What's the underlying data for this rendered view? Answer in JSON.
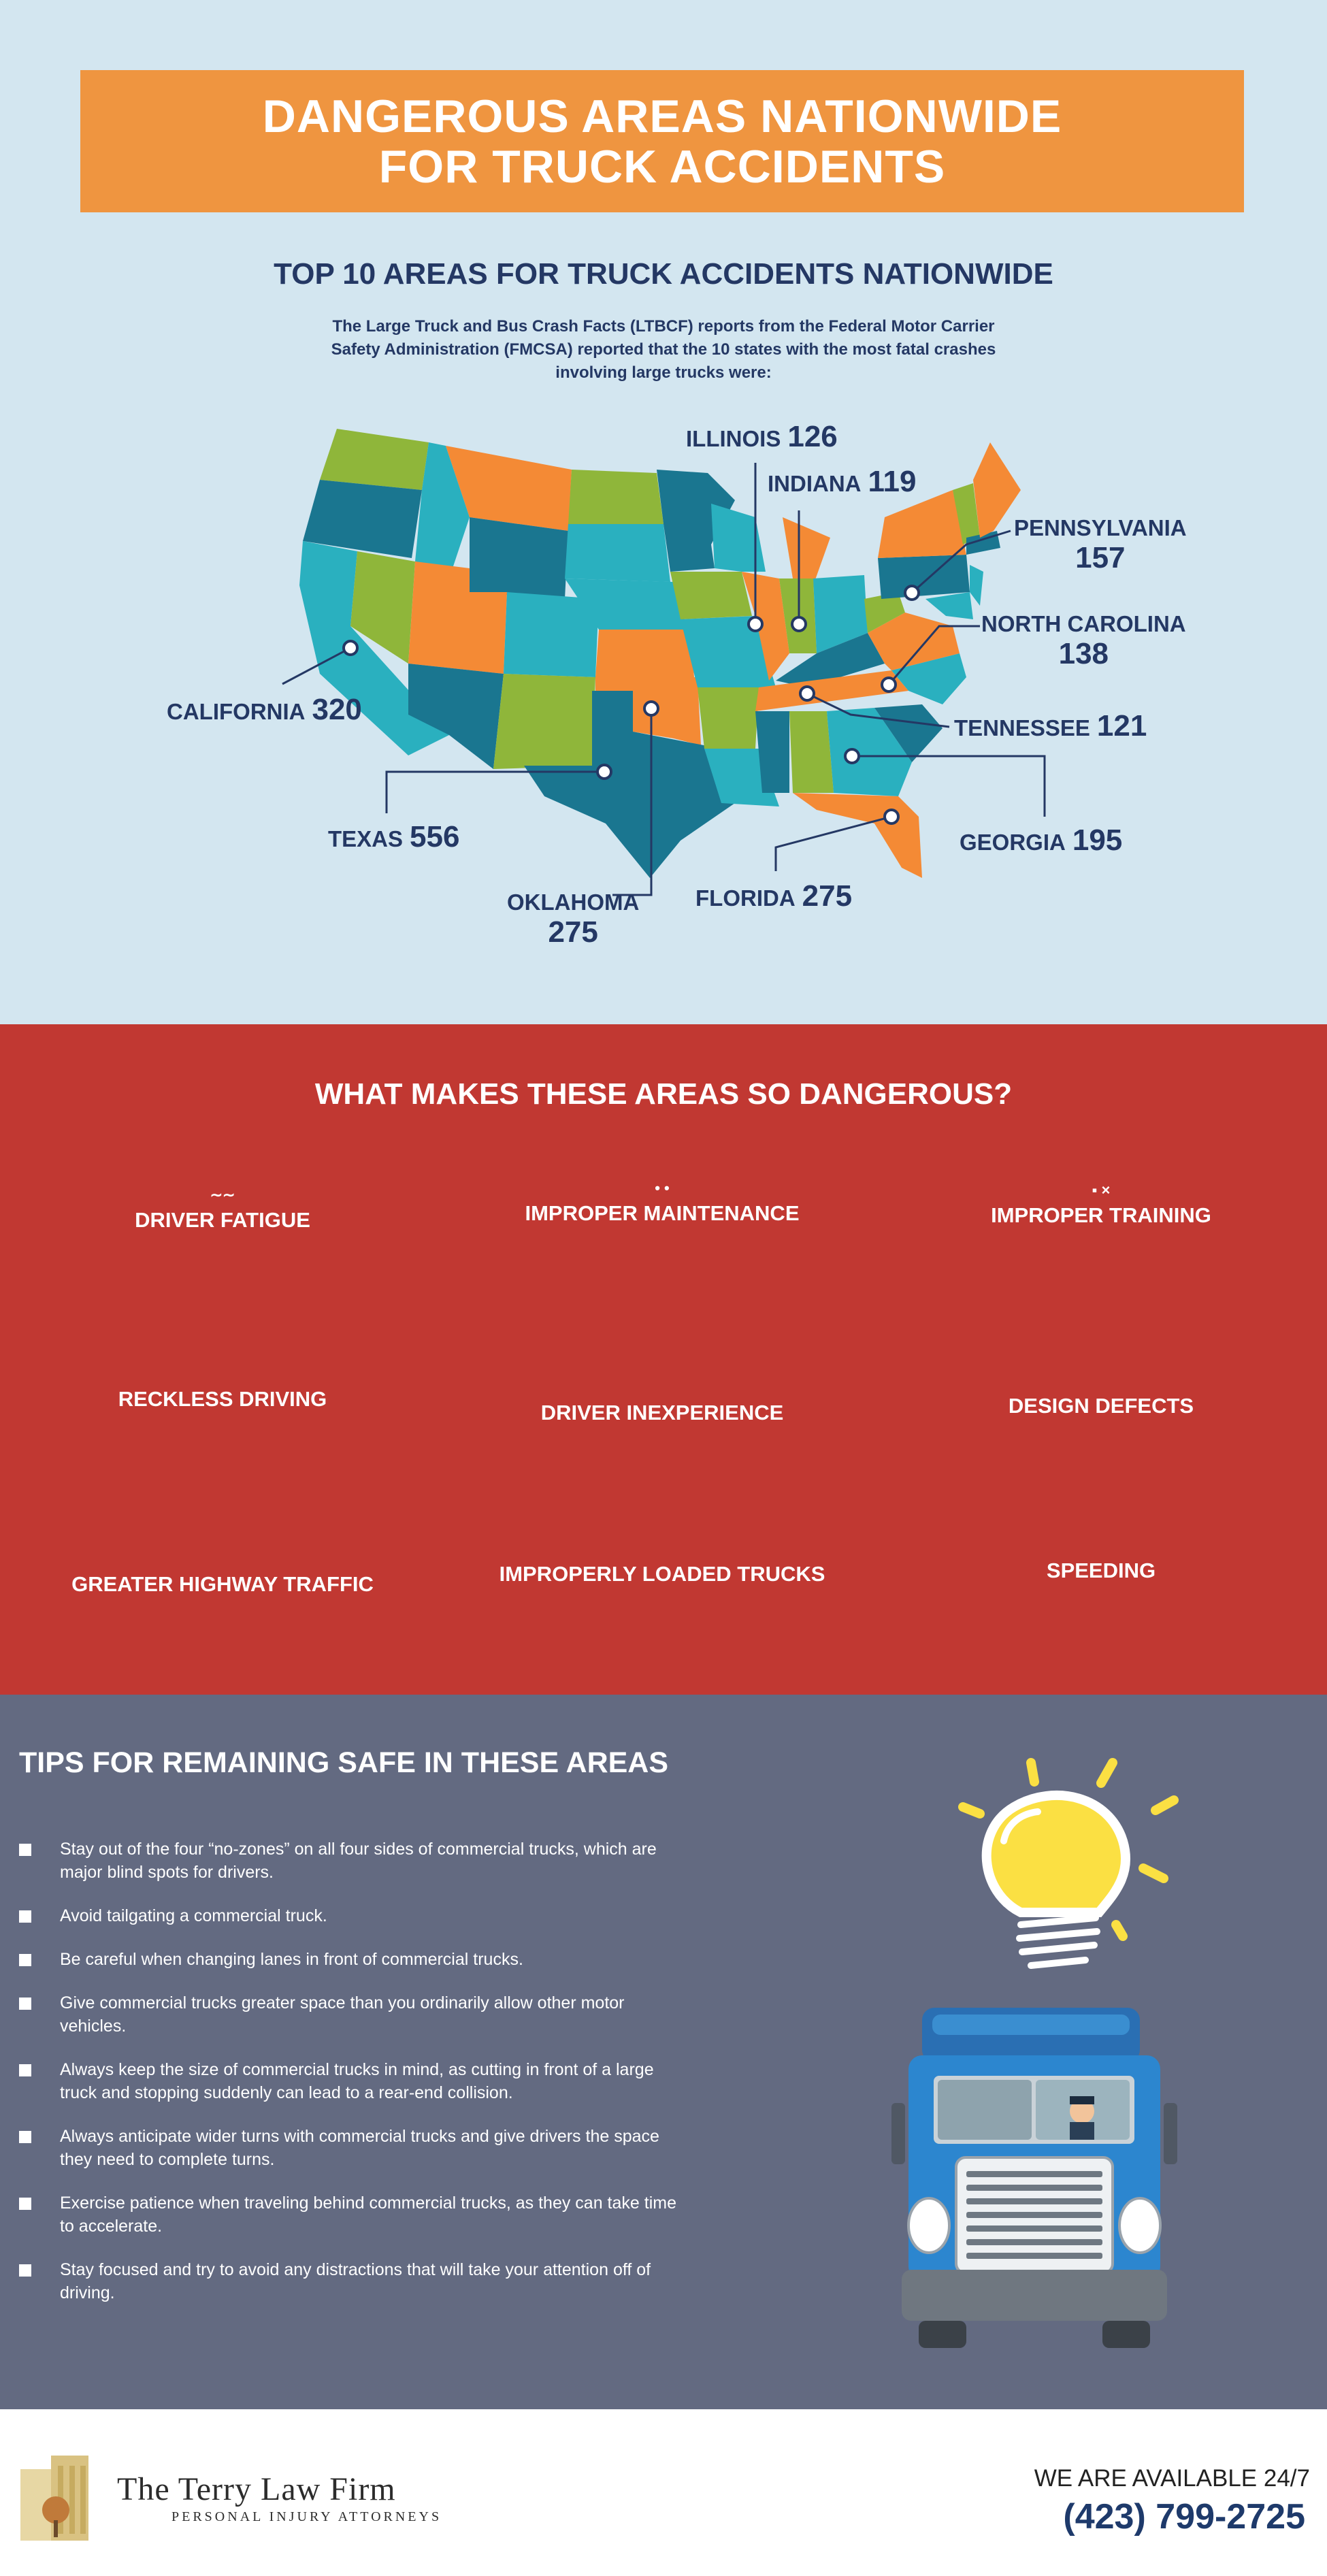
{
  "header": {
    "title_line1": "DANGEROUS AREAS NATIONWIDE",
    "title_line2": "FOR TRUCK ACCIDENTS"
  },
  "map_section": {
    "heading": "TOP 10 AREAS FOR TRUCK ACCIDENTS NATIONWIDE",
    "intro": "The Large Truck and Bus Crash Facts (LTBCF) reports from the Federal Motor Carrier Safety Administration (FMCSA) reported that the 10 states with the most fatal crashes involving large trucks were:",
    "states": [
      {
        "name": "ILLINOIS",
        "value": "126"
      },
      {
        "name": "INDIANA",
        "value": "119"
      },
      {
        "name": "PENNSYLVANIA",
        "value": "157"
      },
      {
        "name": "NORTH CAROLINA",
        "value": "138"
      },
      {
        "name": "CALIFORNIA",
        "value": "320"
      },
      {
        "name": "TENNESSEE",
        "value": "121"
      },
      {
        "name": "TEXAS",
        "value": "556"
      },
      {
        "name": "GEORGIA",
        "value": "195"
      },
      {
        "name": "OKLAHOMA",
        "value": "275"
      },
      {
        "name": "FLORIDA",
        "value": "275"
      }
    ],
    "colors": {
      "teal": "#2ab0bf",
      "dark_teal": "#1a7690",
      "orange": "#f48a35",
      "green": "#8fb63a",
      "navy": "#243864"
    }
  },
  "danger_section": {
    "heading": "WHAT MAKES THESE AREAS SO DANGEROUS?",
    "reasons": [
      {
        "label": "DRIVER FATIGUE",
        "icon": "sleep-icon"
      },
      {
        "label": "IMPROPER MAINTENANCE",
        "icon": "wrench-icon"
      },
      {
        "label": "IMPROPER TRAINING",
        "icon": "training-icon"
      },
      {
        "label": "RECKLESS DRIVING"
      },
      {
        "label": "DRIVER INEXPERIENCE"
      },
      {
        "label": "DESIGN DEFECTS"
      },
      {
        "label": "GREATER HIGHWAY TRAFFIC"
      },
      {
        "label": "IMPROPERLY LOADED TRUCKS"
      },
      {
        "label": "SPEEDING"
      }
    ]
  },
  "tips_section": {
    "heading": "TIPS FOR REMAINING SAFE IN THESE AREAS",
    "tips": [
      "Stay out of the four “no-zones” on all four sides of commercial trucks, which are major blind spots for drivers.",
      "Avoid tailgating a commercial truck.",
      "Be careful when changing lanes in front of commercial trucks.",
      "Give commercial trucks greater space than you ordinarily allow other motor vehicles.",
      "Always keep the size of commercial trucks in mind, as cutting in front of a large truck and stopping suddenly can lead to a rear-end collision.",
      "Always anticipate wider turns with commercial trucks and give drivers the space they need to complete turns.",
      "Exercise patience when traveling behind commercial trucks, as they can take time to accelerate.",
      "Stay focused and try to avoid any distractions that will take your attention off of driving."
    ]
  },
  "footer": {
    "firm_name": "The Terry Law Firm",
    "firm_tagline": "PERSONAL INJURY ATTORNEYS",
    "availability": "WE ARE AVAILABLE 24/7",
    "phone": "(423) 799-2725"
  }
}
